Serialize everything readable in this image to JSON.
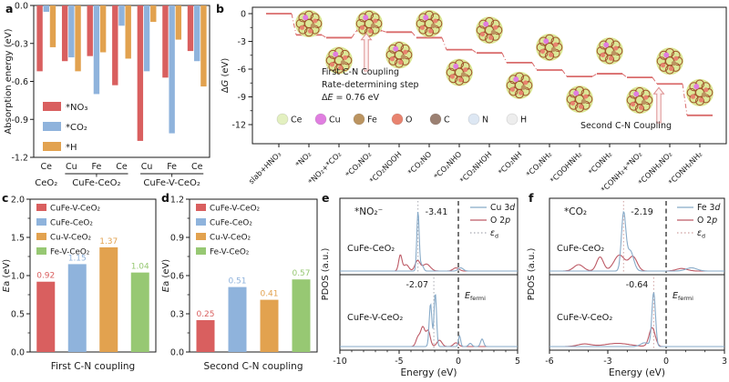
{
  "panels": {
    "a": {
      "label": "a"
    },
    "b": {
      "label": "b"
    },
    "c": {
      "label": "c"
    },
    "d": {
      "label": "d"
    },
    "e": {
      "label": "e"
    },
    "f": {
      "label": "f"
    }
  },
  "colors": {
    "axis": "#1a1a1a",
    "bar_red": "#d95f5f",
    "bar_blue": "#8fb3dc",
    "bar_orange": "#e2a24f",
    "bar_green": "#97c873",
    "step_line": "#d96b6b",
    "arrow_fill": "#fdf2f2",
    "arrow_stroke": "#dd9090",
    "pdos_blue": "#87aac8",
    "pdos_red": "#bd5a66",
    "fermi": "#1a1a1a",
    "cluster_base": "#dce897",
    "cluster_web": "#a0522d"
  },
  "chart_data": [
    {
      "id": "a",
      "type": "bar",
      "ylabel": "Absorption energy (eV)",
      "ylim": [
        -1.2,
        0
      ],
      "yticks": [
        "0.0",
        "-0.3",
        "-0.6",
        "-0.9",
        "-1.2"
      ],
      "categories": [
        "Ce",
        "Cu",
        "Fe",
        "Ce",
        "Cu",
        "Fe",
        "Ce"
      ],
      "groups": [
        {
          "label": "CeO₂",
          "from": 0,
          "to": 0
        },
        {
          "label": "CuFe-CeO₂",
          "from": 1,
          "to": 3
        },
        {
          "label": "CuFe-V-CeO₂",
          "from": 4,
          "to": 6
        }
      ],
      "series": [
        {
          "name": "*NO₃",
          "color_key": "bar_red",
          "values": [
            -0.52,
            -0.44,
            -0.4,
            -0.63,
            -1.07,
            -0.57,
            -0.36
          ]
        },
        {
          "name": "*CO₂",
          "color_key": "bar_blue",
          "values": [
            -0.05,
            -0.41,
            -0.7,
            -0.16,
            -0.52,
            -1.01,
            -0.44
          ]
        },
        {
          "name": "*H",
          "color_key": "bar_orange",
          "values": [
            -0.33,
            -0.52,
            -0.37,
            -0.42,
            -0.13,
            -0.27,
            -0.64
          ]
        }
      ],
      "legend_position": "lower-left"
    },
    {
      "id": "b",
      "type": "step-diagram",
      "ylabel": "Δ{i:G} (eV)",
      "ylim": [
        -12,
        0
      ],
      "yticks": [
        "0",
        "-3",
        "-6",
        "-9",
        "-12"
      ],
      "steps": [
        {
          "label": "slab+HNO₃",
          "dG": 0.0
        },
        {
          "label": "*NO₂",
          "dG": -2.3
        },
        {
          "label": "*NO₂+*CO₂",
          "dG": -2.6
        },
        {
          "label": "*CO₂NO₂",
          "dG": -1.84
        },
        {
          "label": "*CO₂NOOH",
          "dG": -2.0
        },
        {
          "label": "*CO₂NO",
          "dG": -2.6
        },
        {
          "label": "*CO₂NHO",
          "dG": -3.9
        },
        {
          "label": "*CO₂NHOH",
          "dG": -4.25
        },
        {
          "label": "*CO₂NH",
          "dG": -5.3
        },
        {
          "label": "*CO₂NH₂",
          "dG": -6.1
        },
        {
          "label": "*COOHNH₂",
          "dG": -6.8
        },
        {
          "label": "*CONH₂",
          "dG": -6.5
        },
        {
          "label": "*CONH₂+*NO₂",
          "dG": -6.9
        },
        {
          "label": "*CONH₂NO₂",
          "dG": -7.6
        },
        {
          "label": "*CONH₂NH₂",
          "dG": -11.0
        }
      ],
      "annotation_lines": [
        "First C-N Coupling",
        "Rate-determining step",
        "Δ{i:E} = 0.76 eV"
      ],
      "second_coupling_label": "Second C-N Coupling",
      "atom_legend": [
        {
          "name": "Ce",
          "color": "#e3f0c0"
        },
        {
          "name": "Cu",
          "color": "#e07ee0"
        },
        {
          "name": "Fe",
          "color": "#bb9460"
        },
        {
          "name": "O",
          "color": "#e8836f"
        },
        {
          "name": "C",
          "color": "#9b8072"
        },
        {
          "name": "N",
          "color": "#dde7f3"
        },
        {
          "name": "H",
          "color": "#ededed"
        }
      ]
    },
    {
      "id": "c",
      "type": "bar",
      "ylabel": "{i:E}a (eV)",
      "xlabel": "First C-N coupling",
      "ylim": [
        0,
        2
      ],
      "yticks": [
        "0.0",
        "0.5",
        "1.0",
        "1.5",
        "2.0"
      ],
      "bars": [
        {
          "name": "CuFe-V-CeO₂",
          "color_key": "bar_red",
          "value": 0.92,
          "value_label": "0.92"
        },
        {
          "name": "CuFe-CeO₂",
          "color_key": "bar_blue",
          "value": 1.15,
          "value_label": "1.15"
        },
        {
          "name": "Cu-V-CeO₂",
          "color_key": "bar_orange",
          "value": 1.37,
          "value_label": "1.37"
        },
        {
          "name": "Fe-V-CeO₂",
          "color_key": "bar_green",
          "value": 1.04,
          "value_label": "1.04"
        }
      ]
    },
    {
      "id": "d",
      "type": "bar",
      "ylabel": "{i:E}a (eV)",
      "xlabel": "Second C-N coupling",
      "ylim": [
        0,
        1.2
      ],
      "yticks": [
        "0.0",
        "0.3",
        "0.6",
        "0.9",
        "1.2"
      ],
      "bars": [
        {
          "name": "CuFe-V-CeO₂",
          "color_key": "bar_red",
          "value": 0.25,
          "value_label": "0.25"
        },
        {
          "name": "CuFe-CeO₂",
          "color_key": "bar_blue",
          "value": 0.51,
          "value_label": "0.51"
        },
        {
          "name": "Cu-V-CeO₂",
          "color_key": "bar_orange",
          "value": 0.41,
          "value_label": "0.41"
        },
        {
          "name": "Fe-V-CeO₂",
          "color_key": "bar_green",
          "value": 0.57,
          "value_label": "0.57"
        }
      ]
    },
    {
      "id": "e",
      "type": "pdos",
      "adsorbate": "*NO₂⁻",
      "xlabel": "Energy (eV)",
      "ylabel": "PDOS (a.u.)",
      "xlim": [
        -10,
        5
      ],
      "xticks": [
        "-10",
        "-5",
        "0",
        "5"
      ],
      "fermi_label": "{i:E}{sub:fermi}",
      "ed_color": "#a9aab2",
      "legend": [
        "Cu 3{i:d}",
        "O 2{i:p}",
        "{i:ε}{sub:d}"
      ],
      "subplots": [
        {
          "name": "CuFe-CeO₂",
          "ed": -3.41,
          "ed_label": "-3.41",
          "ed_side": "right",
          "d_band": [
            [
              -3.41,
              0.93,
              0.14
            ],
            [
              -3.1,
              0.1,
              0.2
            ],
            [
              0.2,
              0.05,
              0.3
            ]
          ],
          "o_band": [
            [
              -4.9,
              0.25,
              0.2
            ],
            [
              -4.4,
              0.1,
              0.3
            ],
            [
              -3.45,
              0.16,
              0.3
            ],
            [
              -2.7,
              0.11,
              0.45
            ],
            [
              -0.2,
              0.05,
              0.35
            ]
          ]
        },
        {
          "name": "CuFe-V-CeO₂",
          "ed": -2.07,
          "ed_label": "-2.07",
          "ed_side": "left",
          "d_band": [
            [
              -2.35,
              0.68,
              0.16
            ],
            [
              -1.95,
              0.85,
              0.15
            ],
            [
              0.1,
              0.17,
              0.13
            ],
            [
              2.0,
              0.12,
              0.18
            ],
            [
              1.0,
              0.05,
              0.2
            ]
          ],
          "o_band": [
            [
              -3.0,
              0.3,
              0.25
            ],
            [
              -2.55,
              0.25,
              0.25
            ],
            [
              -3.4,
              0.15,
              0.25
            ],
            [
              -1.6,
              0.1,
              0.3
            ],
            [
              -0.2,
              0.06,
              0.3
            ]
          ]
        }
      ]
    },
    {
      "id": "f",
      "type": "pdos",
      "adsorbate": "*CO₂",
      "xlabel": "Energy (eV)",
      "ylabel": "PDOS (a.u.)",
      "xlim": [
        -6,
        3
      ],
      "xticks": [
        "-6",
        "-3",
        "0",
        "3"
      ],
      "fermi_label": "{i:E}{sub:fermi}",
      "ed_color": "#cfa0a0",
      "legend": [
        "Fe 3{i:d}",
        "O 2{i:p}",
        "{i:ε}{sub:d}"
      ],
      "subplots": [
        {
          "name": "CuFe-CeO₂",
          "ed": -2.19,
          "ed_label": "-2.19",
          "ed_side": "right",
          "d_band": [
            [
              -2.19,
              0.88,
              0.16
            ],
            [
              -1.85,
              0.32,
              0.25
            ],
            [
              1.3,
              0.05,
              0.4
            ]
          ],
          "o_band": [
            [
              -4.5,
              0.1,
              0.35
            ],
            [
              -3.4,
              0.22,
              0.25
            ],
            [
              -2.4,
              0.25,
              0.4
            ],
            [
              -1.7,
              0.22,
              0.3
            ],
            [
              0.8,
              0.04,
              0.4
            ]
          ]
        },
        {
          "name": "CuFe-V-CeO₂",
          "ed": -0.64,
          "ed_label": "-0.64",
          "ed_side": "left",
          "d_band": [
            [
              -0.64,
              0.86,
              0.13
            ],
            [
              -1.1,
              0.06,
              0.3
            ]
          ],
          "o_band": [
            [
              -0.72,
              0.3,
              0.22
            ],
            [
              -2.5,
              0.05,
              0.9
            ],
            [
              -4.2,
              0.04,
              0.5
            ]
          ]
        }
      ]
    }
  ]
}
